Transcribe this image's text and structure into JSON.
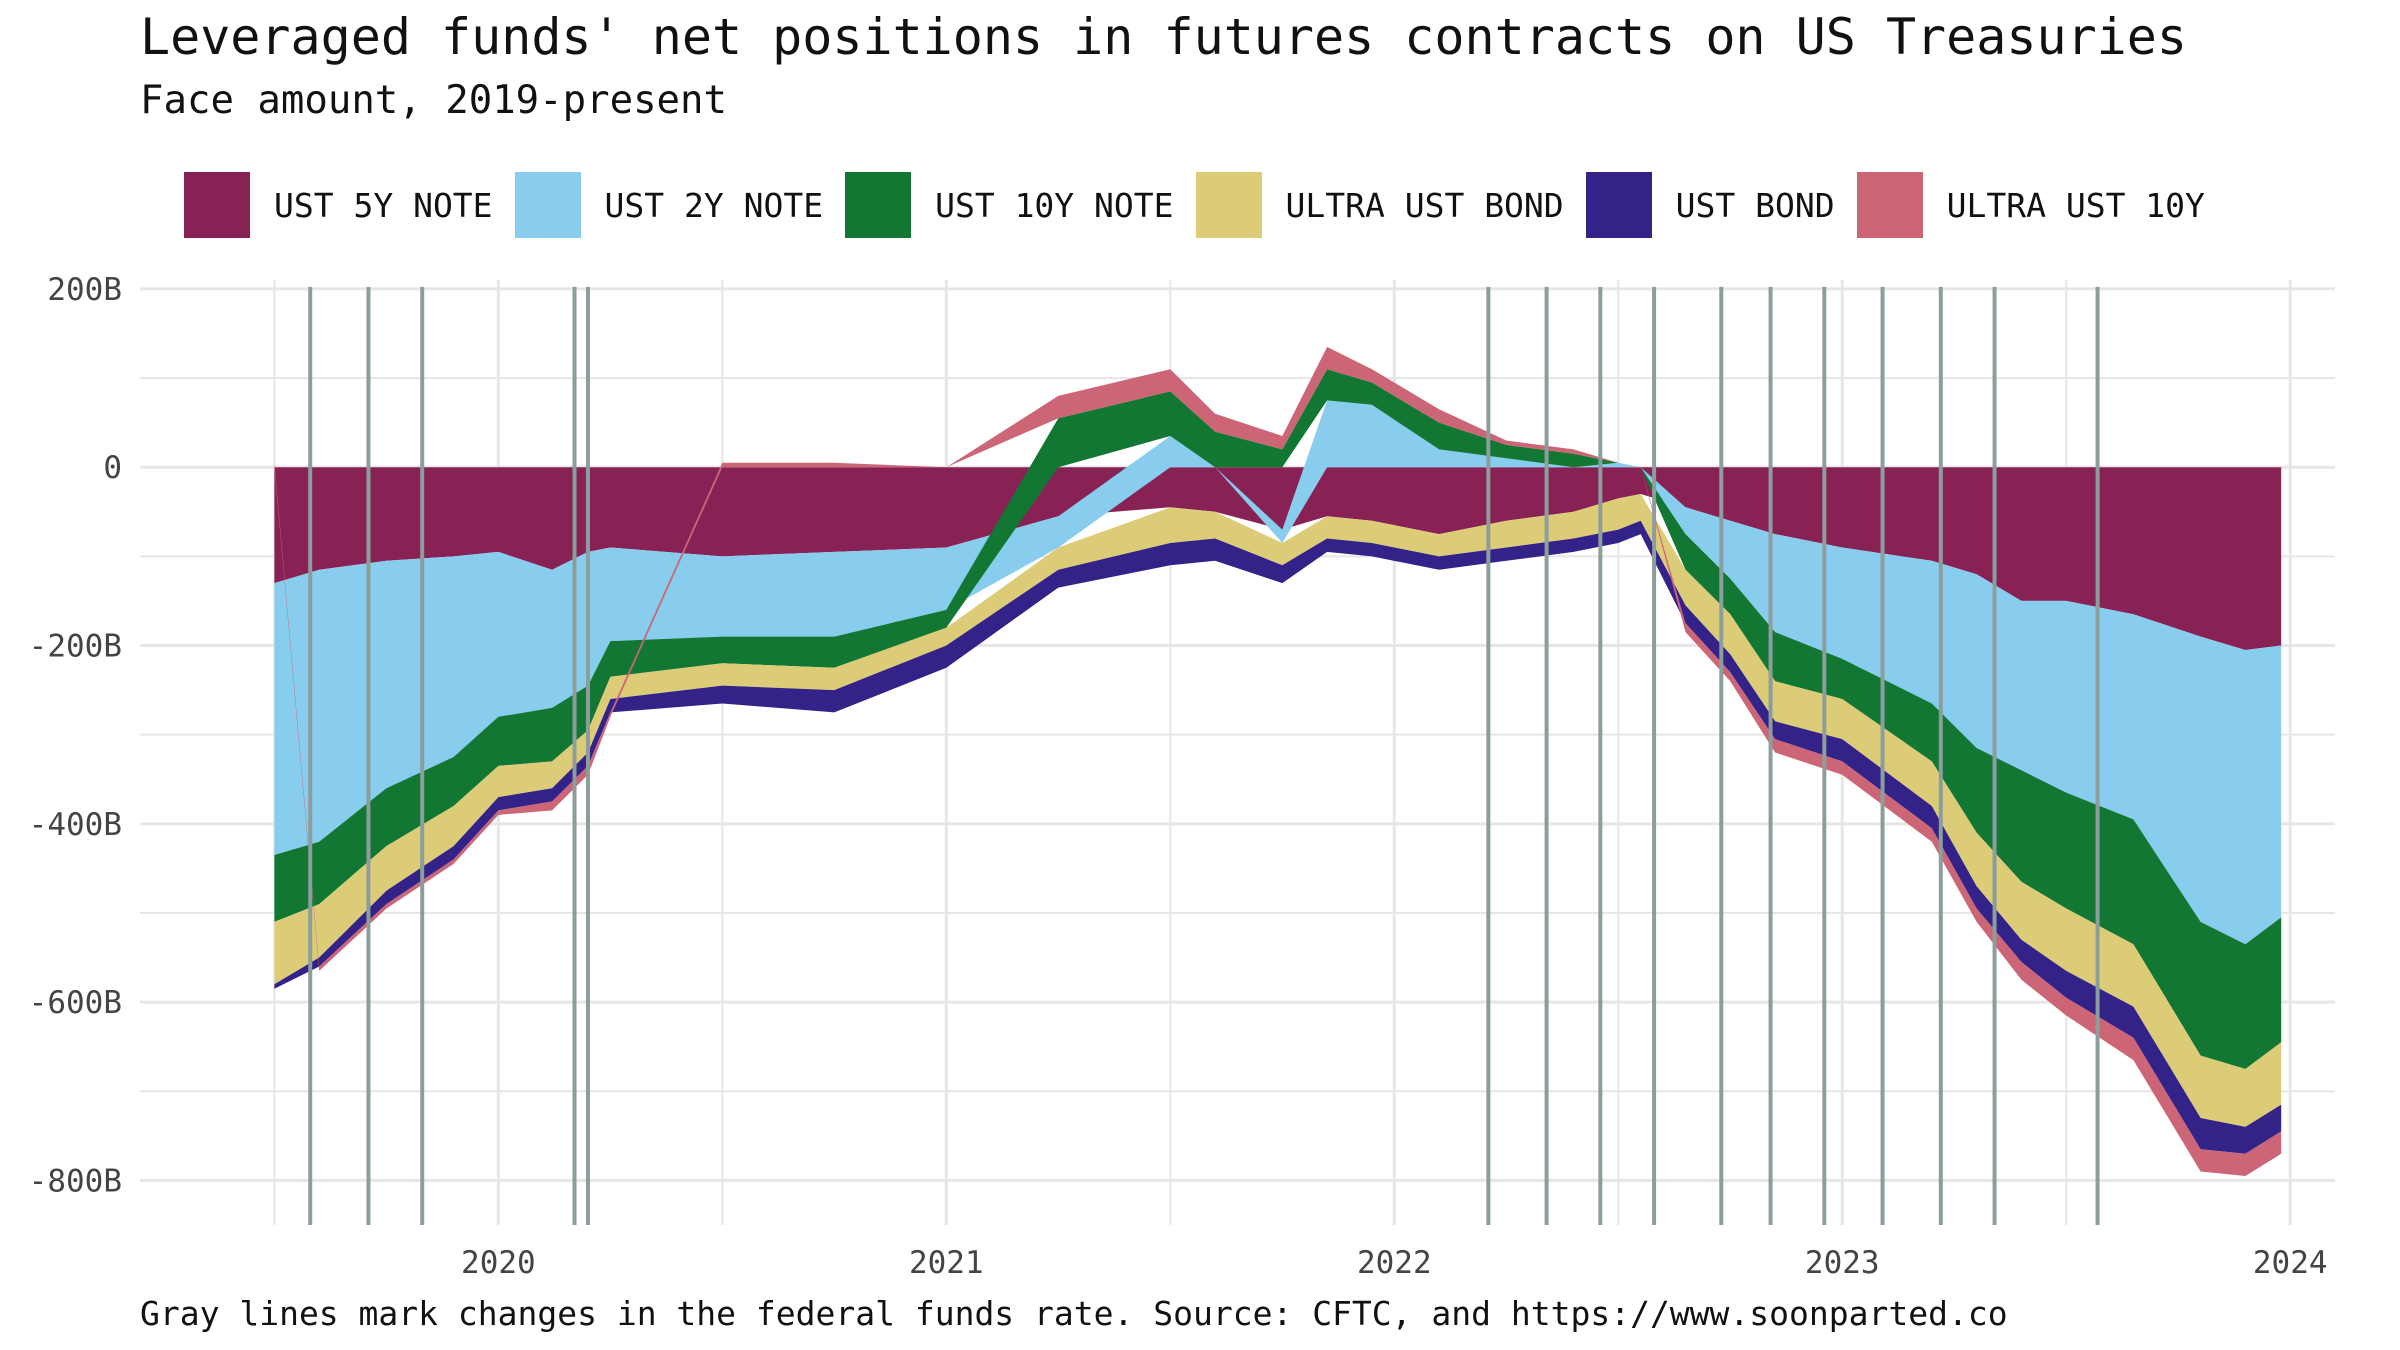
{
  "title": "Leveraged funds' net positions in futures contracts on US Treasuries",
  "subtitle": "Face amount, 2019-present",
  "caption": "Gray lines mark changes in the federal funds rate. Source: CFTC, and https://www.soonparted.co",
  "colors": {
    "UST 5Y NOTE": "#882255",
    "UST 2Y NOTE": "#88CCEE",
    "UST 10Y NOTE": "#117733",
    "ULTRA UST BOND": "#DDCC77",
    "UST BOND": "#332288",
    "ULTRA UST 10Y": "#CC6677",
    "grid": "#e6e6e6",
    "rate_line": "#8c9e9b"
  },
  "chart_data": {
    "type": "area",
    "stacked": true,
    "title": "Leveraged funds' net positions in futures contracts on US Treasuries",
    "subtitle": "Face amount, 2019-present",
    "unit": "billions USD (face amount)",
    "legend": [
      "UST 5Y NOTE",
      "UST 2Y NOTE",
      "UST 10Y NOTE",
      "ULTRA UST BOND",
      "UST BOND",
      "ULTRA UST 10Y"
    ],
    "legend_position": "top",
    "x_ticks": [
      2020,
      2021,
      2022,
      2023,
      2024
    ],
    "x_tick_labels": [
      "2020",
      "2021",
      "2022",
      "2023",
      "2024"
    ],
    "y_ticks": [
      200,
      0,
      -200,
      -400,
      -600,
      -800
    ],
    "y_tick_labels": [
      "200B",
      "0",
      "-200B",
      "-400B",
      "-600B",
      "-800B"
    ],
    "xlim": [
      2019.2,
      2024.1
    ],
    "ylim": [
      -850,
      210
    ],
    "grid": true,
    "x": [
      2019.5,
      2019.6,
      2019.75,
      2019.9,
      2020.0,
      2020.12,
      2020.2,
      2020.25,
      2020.5,
      2020.75,
      2021.0,
      2021.25,
      2021.5,
      2021.6,
      2021.75,
      2021.85,
      2021.95,
      2022.1,
      2022.25,
      2022.4,
      2022.5,
      2022.55,
      2022.65,
      2022.75,
      2022.85,
      2023.0,
      2023.2,
      2023.3,
      2023.4,
      2023.5,
      2023.65,
      2023.8,
      2023.9,
      2023.98
    ],
    "series": [
      {
        "name": "UST 5Y NOTE",
        "values": [
          -130,
          -115,
          -105,
          -100,
          -95,
          -115,
          -95,
          -90,
          -100,
          -95,
          -90,
          -55,
          -45,
          -50,
          -70,
          -55,
          -60,
          -75,
          -60,
          -50,
          -35,
          -30,
          -45,
          -60,
          -75,
          -90,
          -105,
          -120,
          -150,
          -150,
          -165,
          -190,
          -205,
          -200
        ]
      },
      {
        "name": "UST 2Y NOTE",
        "values": [
          -305,
          -305,
          -255,
          -225,
          -185,
          -155,
          -150,
          -105,
          -90,
          -95,
          -70,
          -35,
          35,
          0,
          -15,
          75,
          70,
          20,
          10,
          0,
          5,
          0,
          -30,
          -65,
          -110,
          -125,
          -160,
          -195,
          -190,
          -215,
          -230,
          -320,
          -330,
          -305
        ]
      },
      {
        "name": "UST 10Y NOTE",
        "values": [
          -75,
          -70,
          -65,
          -55,
          -55,
          -60,
          -50,
          -40,
          -30,
          -35,
          -20,
          55,
          50,
          40,
          20,
          35,
          25,
          30,
          15,
          15,
          0,
          0,
          -40,
          -40,
          -55,
          -45,
          -65,
          -95,
          -125,
          -130,
          -140,
          -150,
          -140,
          -140
        ]
      },
      {
        "name": "ULTRA UST BOND",
        "values": [
          -70,
          -60,
          -50,
          -45,
          -35,
          -30,
          -25,
          -25,
          -25,
          -25,
          -20,
          -25,
          -40,
          -30,
          -25,
          -25,
          -25,
          -25,
          -30,
          -30,
          -35,
          -30,
          -40,
          -45,
          -45,
          -45,
          -50,
          -60,
          -65,
          -70,
          -70,
          -70,
          -65,
          -70
        ]
      },
      {
        "name": "UST BOND",
        "values": [
          -5,
          -10,
          -15,
          -15,
          -15,
          -15,
          -15,
          -15,
          -20,
          -25,
          -25,
          -20,
          -25,
          -25,
          -20,
          -15,
          -15,
          -15,
          -15,
          -15,
          -15,
          -15,
          -20,
          -20,
          -20,
          -25,
          -25,
          -25,
          -25,
          -30,
          -35,
          -35,
          -30,
          -30
        ]
      },
      {
        "name": "ULTRA UST 10Y",
        "values": [
          5,
          -5,
          -5,
          -5,
          -5,
          -10,
          -10,
          -5,
          5,
          5,
          0,
          25,
          25,
          20,
          15,
          25,
          15,
          15,
          5,
          5,
          0,
          0,
          -10,
          -10,
          -15,
          -15,
          -15,
          -15,
          -20,
          -20,
          -25,
          -25,
          -25,
          -25
        ]
      }
    ],
    "rate_change_lines": [
      2019.58,
      2019.71,
      2019.83,
      2020.17,
      2020.2,
      2022.21,
      2022.34,
      2022.46,
      2022.58,
      2022.73,
      2022.84,
      2022.96,
      2023.09,
      2023.22,
      2023.34,
      2023.57
    ]
  }
}
